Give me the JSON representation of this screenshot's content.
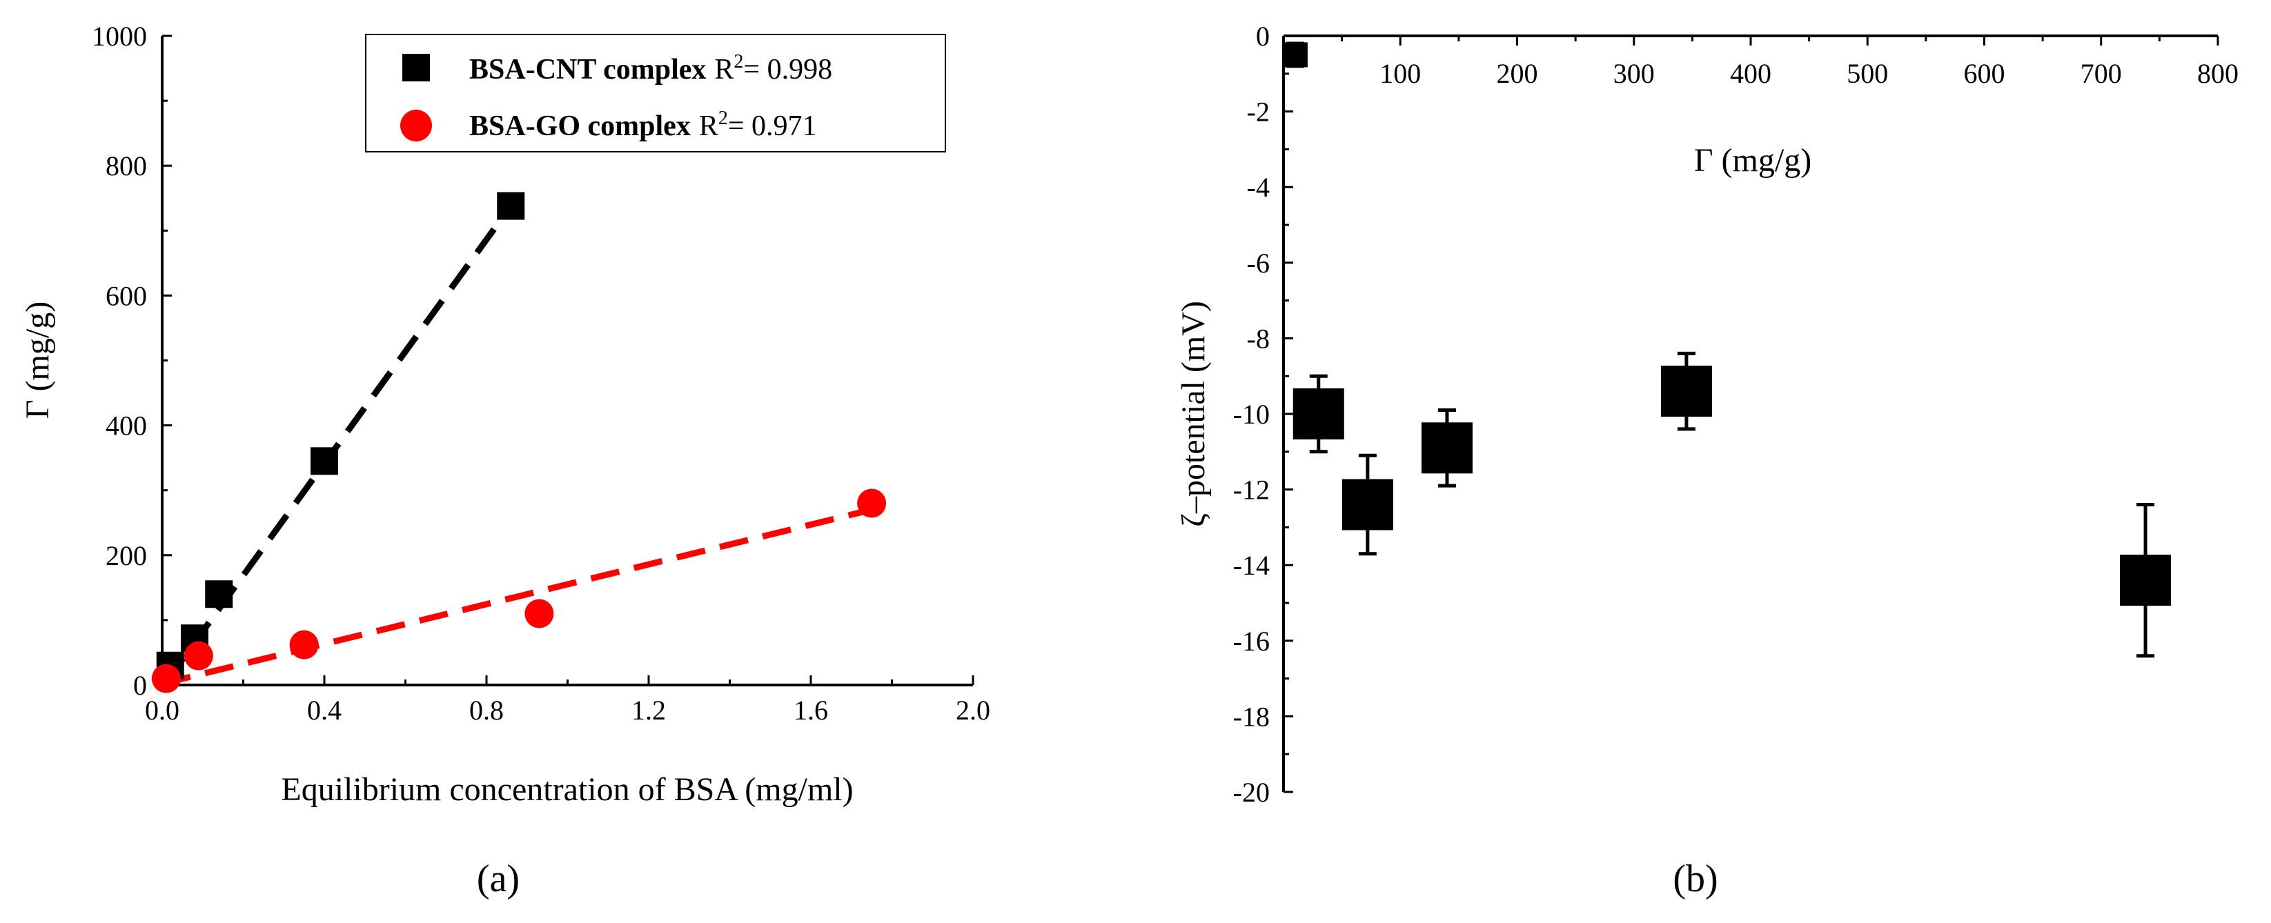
{
  "chart_data": [
    {
      "panel": "a",
      "panel_label": "(a)",
      "type": "scatter",
      "xlabel": "Equilibrium concentration of BSA (mg/ml)",
      "ylabel": "Γ (mg/g)",
      "xlim": [
        0,
        2.0
      ],
      "ylim": [
        0,
        1000
      ],
      "xticks": [
        "0.0",
        "0.4",
        "0.8",
        "1.2",
        "1.6",
        "2.0"
      ],
      "yticks": [
        "0",
        "200",
        "400",
        "600",
        "800",
        "1000"
      ],
      "legend_position": "top-right",
      "series": [
        {
          "name": "BSA-CNT complex",
          "r2_prefix": "R",
          "r2_sup": "2",
          "r2_value": "= 0.998",
          "marker": "square",
          "color": "#000000",
          "points": [
            [
              0.02,
              30
            ],
            [
              0.08,
              72
            ],
            [
              0.14,
              140
            ],
            [
              0.4,
              345
            ],
            [
              0.86,
              738
            ]
          ],
          "fit_line": [
            [
              0.01,
              5
            ],
            [
              0.86,
              738
            ]
          ]
        },
        {
          "name": "BSA-GO complex",
          "r2_prefix": "R",
          "r2_sup": "2",
          "r2_value": "= 0.971",
          "marker": "circle",
          "color": "#ff0000",
          "points": [
            [
              0.01,
              10
            ],
            [
              0.09,
              45
            ],
            [
              0.35,
              62
            ],
            [
              0.93,
              110
            ],
            [
              1.75,
              280
            ]
          ],
          "fit_line": [
            [
              0.0,
              2
            ],
            [
              1.75,
              270
            ]
          ]
        }
      ]
    },
    {
      "panel": "b",
      "panel_label": "(b)",
      "type": "scatter",
      "xlabel": "Γ (mg/g)",
      "ylabel": "ζ–potential (mV)",
      "x_axis_position": "top",
      "xlim": [
        0,
        800
      ],
      "ylim": [
        -20,
        0
      ],
      "xticks": [
        "100",
        "200",
        "300",
        "400",
        "500",
        "600",
        "700",
        "800"
      ],
      "yticks": [
        "0",
        "-2",
        "-4",
        "-6",
        "-8",
        "-10",
        "-12",
        "-14",
        "-16",
        "-18",
        "-20"
      ],
      "series": [
        {
          "name": "ζ-potential",
          "marker": "square",
          "color": "#000000",
          "points": [
            {
              "x": 10,
              "y": -0.5,
              "err": 0.3
            },
            {
              "x": 30,
              "y": -10.0,
              "err": 1.0
            },
            {
              "x": 72,
              "y": -12.4,
              "err": 1.3
            },
            {
              "x": 140,
              "y": -10.9,
              "err": 1.0
            },
            {
              "x": 345,
              "y": -9.4,
              "err": 1.0
            },
            {
              "x": 738,
              "y": -14.4,
              "err": 2.0
            }
          ]
        }
      ]
    }
  ]
}
